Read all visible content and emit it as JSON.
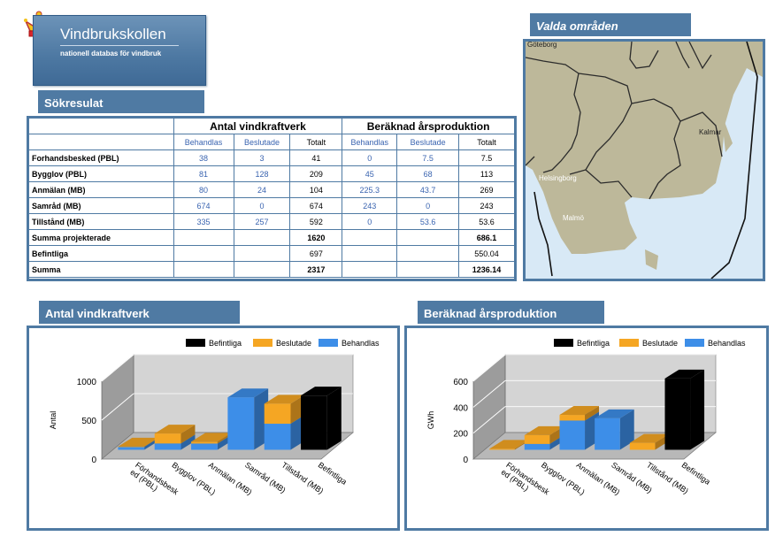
{
  "header": {
    "app_name": "Vindbrukskollen",
    "subtitle": "nationell databas för vindbruk"
  },
  "results": {
    "title": "Sökresulat",
    "group_count": "Antal vindkraftverk",
    "group_prod": "Beräknad årsproduktion",
    "col_behandlas": "Behandlas",
    "col_beslutade": "Beslutade",
    "col_totalt": "Totalt",
    "rows": [
      {
        "label": "Forhandsbesked (PBL)",
        "c1": "38",
        "c2": "3",
        "c3": "41",
        "p1": "0",
        "p2": "7.5",
        "p3": "7.5"
      },
      {
        "label": "Bygglov (PBL)",
        "c1": "81",
        "c2": "128",
        "c3": "209",
        "p1": "45",
        "p2": "68",
        "p3": "113"
      },
      {
        "label": "Anmälan (MB)",
        "c1": "80",
        "c2": "24",
        "c3": "104",
        "p1": "225.3",
        "p2": "43.7",
        "p3": "269"
      },
      {
        "label": "Samråd (MB)",
        "c1": "674",
        "c2": "0",
        "c3": "674",
        "p1": "243",
        "p2": "0",
        "p3": "243"
      },
      {
        "label": "Tillstånd (MB)",
        "c1": "335",
        "c2": "257",
        "c3": "592",
        "p1": "0",
        "p2": "53.6",
        "p3": "53.6"
      }
    ],
    "summa_projekterade": {
      "label": "Summa  projekterade",
      "count": "1620",
      "prod": "686.1"
    },
    "befintliga": {
      "label": "Befintliga",
      "count": "697",
      "prod": "550.04"
    },
    "summa": {
      "label": "Summa",
      "count": "2317",
      "prod": "1236.14"
    }
  },
  "map": {
    "title": "Valda områden",
    "labels": [
      "Göteborg",
      "Kalmar",
      "Helsingborg",
      "Malmö"
    ]
  },
  "charts": {
    "legend": {
      "befintliga": "Befintliga",
      "beslutade": "Beslutade",
      "behandlas": "Behandlas"
    },
    "colors": {
      "befintliga": "#000000",
      "beslutade": "#f5a623",
      "behandlas": "#3d8ee8"
    },
    "count_title": "Antal vindkraftverk",
    "prod_title": "Beräknad årsproduktion"
  },
  "chart_data": [
    {
      "type": "bar",
      "title": "Antal vindkraftverk",
      "ylabel": "Antal",
      "ylim": [
        0,
        1000
      ],
      "yticks": [
        0,
        500,
        1000
      ],
      "categories": [
        "Förhandsbesked (PBL)",
        "Bygglov (PBL)",
        "Anmälan (MB)",
        "Samråd (MB)",
        "Tillstånd (MB)",
        "Befintliga"
      ],
      "series": [
        {
          "name": "Behandlas",
          "values": [
            38,
            81,
            80,
            674,
            335,
            0
          ]
        },
        {
          "name": "Beslutade",
          "values": [
            3,
            128,
            24,
            0,
            257,
            0
          ]
        },
        {
          "name": "Befintliga",
          "values": [
            0,
            0,
            0,
            0,
            0,
            697
          ]
        }
      ]
    },
    {
      "type": "bar",
      "title": "Beräknad årsproduktion",
      "ylabel": "GWh",
      "ylim": [
        0,
        600
      ],
      "yticks": [
        0,
        200,
        400,
        600
      ],
      "categories": [
        "Förhandsbesked (PBL)",
        "Bygglov (PBL)",
        "Anmälan (MB)",
        "Samråd (MB)",
        "Tillstånd (MB)",
        "Befintliga"
      ],
      "series": [
        {
          "name": "Behandlas",
          "values": [
            0,
            45,
            225.3,
            243,
            0,
            0
          ]
        },
        {
          "name": "Beslutade",
          "values": [
            7.5,
            68,
            43.7,
            0,
            53.6,
            0
          ]
        },
        {
          "name": "Befintliga",
          "values": [
            0,
            0,
            0,
            0,
            0,
            550.04
          ]
        }
      ]
    }
  ],
  "chart_tick_labels": {
    "x": [
      [
        "Förhandsbesk",
        "ed (PBL)"
      ],
      [
        "Bygglov (PBL)"
      ],
      [
        "Anmälan (MB)"
      ],
      [
        "Samråd (MB)"
      ],
      [
        "Tillstånd (MB)"
      ],
      [
        "Befintliga"
      ]
    ],
    "y1": [
      "0",
      "500",
      "1000"
    ],
    "y2": [
      "0",
      "200",
      "400",
      "600"
    ]
  }
}
